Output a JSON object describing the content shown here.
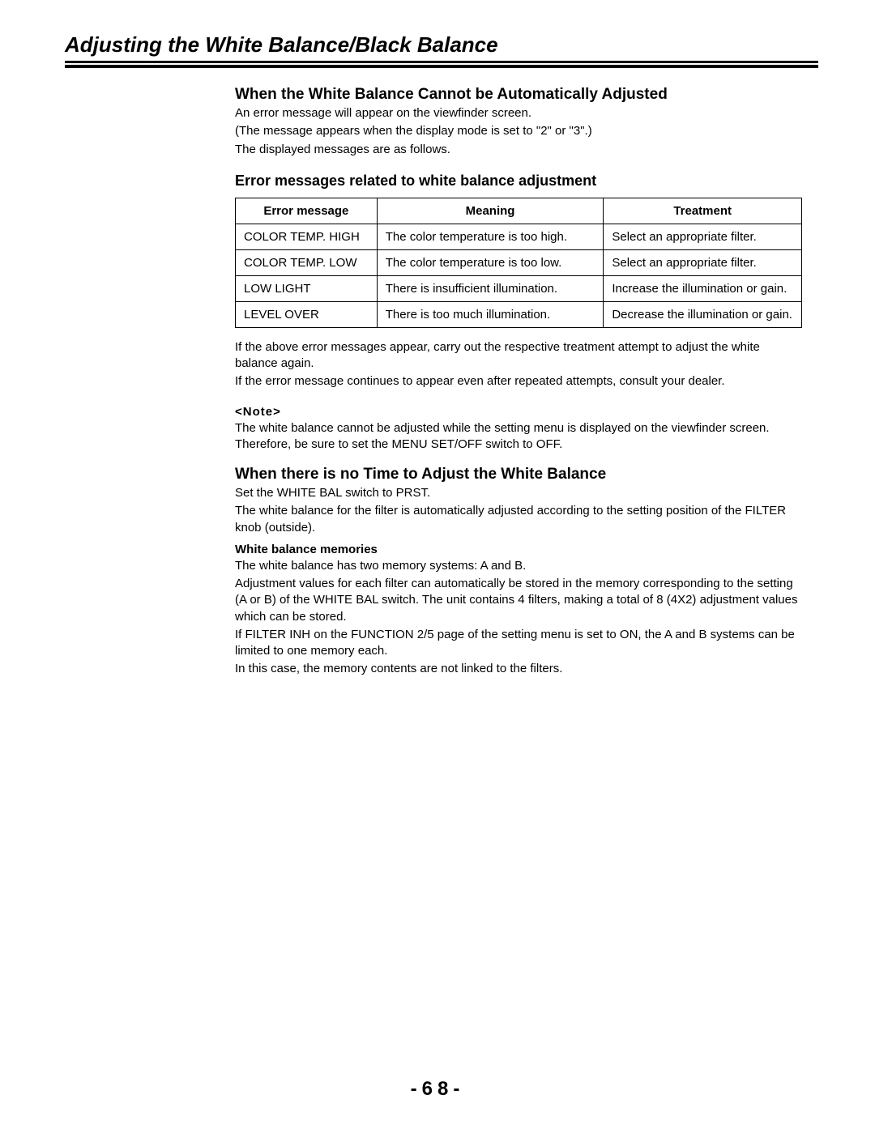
{
  "title": "Adjusting the White Balance/Black Balance",
  "section1": {
    "heading": "When the White Balance Cannot be Automatically Adjusted",
    "p1": "An error message will appear on the viewfinder screen.",
    "p2": "(The message appears when the display mode is set to \"2\" or \"3\".)",
    "p3": "The displayed messages are as follows."
  },
  "section2": {
    "heading": "Error messages related to white balance adjustment",
    "table": {
      "headers": {
        "c1": "Error message",
        "c2": "Meaning",
        "c3": "Treatment"
      },
      "rows": [
        {
          "c1": "COLOR TEMP. HIGH",
          "c2": "The color temperature is too high.",
          "c3": "Select an appropriate filter."
        },
        {
          "c1": "COLOR TEMP. LOW",
          "c2": "The color temperature is too low.",
          "c3": "Select an appropriate filter."
        },
        {
          "c1": "LOW LIGHT",
          "c2": "There is insufficient illumination.",
          "c3": "Increase the illumination or gain."
        },
        {
          "c1": "LEVEL OVER",
          "c2": "There is too much illumination.",
          "c3": "Decrease the illumination or gain."
        }
      ]
    },
    "after1": "If the above error messages appear, carry out the respective treatment attempt to adjust the white balance again.",
    "after2": "If the error message continues to appear even after repeated attempts, consult your dealer.",
    "noteLabel": "<Note>",
    "noteText": "The white balance cannot be adjusted while the setting menu is displayed on the viewfinder screen. Therefore, be sure to set the MENU SET/OFF switch to OFF."
  },
  "section3": {
    "heading": "When there is no Time to Adjust the White Balance",
    "p1": "Set the WHITE BAL switch to PRST.",
    "p2": "The white balance for the filter is automatically adjusted according to the setting position of the FILTER knob (outside).",
    "boldLabel": "White balance memories",
    "p3": "The white balance has two memory systems: A and B.",
    "p4": "Adjustment values for each filter can automatically be stored in the memory corresponding to the setting (A or B) of the WHITE BAL switch. The unit contains 4 filters, making a total of 8 (4X2) adjustment values which can be stored.",
    "p5": "If FILTER INH on the FUNCTION 2/5 page of the setting menu is set to ON, the A and B systems can be limited to one memory each.",
    "p6": "In this case, the memory contents are not linked to the filters."
  },
  "pageNumber": "-68-"
}
